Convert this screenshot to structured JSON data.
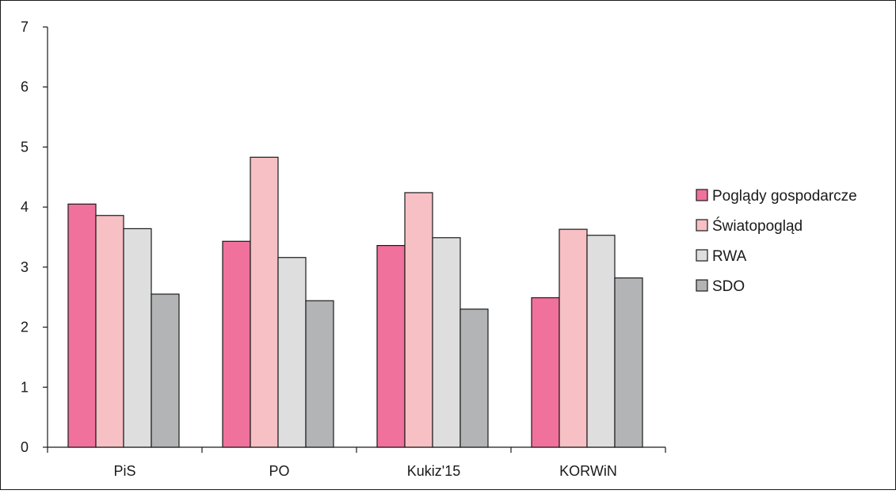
{
  "chart_data": {
    "type": "bar",
    "title": "",
    "xlabel": "",
    "ylabel": "",
    "categories": [
      "PiS",
      "PO",
      "Kukiz'15",
      "KORWiN"
    ],
    "ylim": [
      0,
      7
    ],
    "yticks": [
      "0",
      "1",
      "2",
      "3",
      "4",
      "5",
      "6",
      "7"
    ],
    "grid": false,
    "legend_position": "right",
    "series": [
      {
        "name": "Poglądy gospodarcze",
        "color": "#f0719b",
        "values": [
          4.05,
          3.43,
          3.36,
          2.49
        ]
      },
      {
        "name": "Światopogląd",
        "color": "#f7c0c4",
        "values": [
          3.86,
          4.83,
          4.24,
          3.63
        ]
      },
      {
        "name": "RWA",
        "color": "#dedede",
        "values": [
          3.64,
          3.16,
          3.49,
          3.53
        ]
      },
      {
        "name": "SDO",
        "color": "#b2b4b5",
        "values": [
          2.55,
          2.44,
          2.3,
          2.82
        ]
      }
    ]
  }
}
